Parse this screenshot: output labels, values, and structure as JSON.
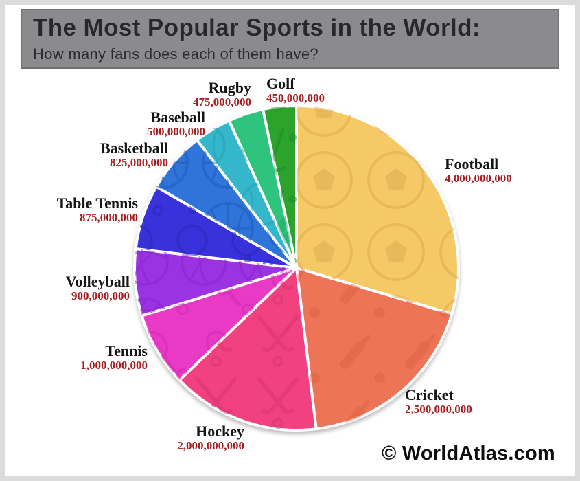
{
  "header": {
    "title": "The Most Popular Sports in the World:",
    "subtitle": "How many fans does each of them have?"
  },
  "watermark": "© WorldAtlas.com",
  "colors": {
    "header_background": "#8B8B8D",
    "header_text": "#28282A",
    "frame": "#DBDBDB",
    "slice_name_text": "#151515",
    "slice_value_text": "#A41E22",
    "slice_divider": "#FFFFFF"
  },
  "chart_data": {
    "type": "pie",
    "title": "The Most Popular Sports in the World:",
    "subtitle": "How many fans does each of them have?",
    "unit": "fans",
    "start_angle_deg": 0,
    "direction": "clockwise",
    "legend": "none",
    "slices": [
      {
        "name": "Football",
        "value": 4000000000,
        "value_label": "4,000,000,000",
        "color": "#F5C966",
        "pattern_color": "#DCA94F",
        "icon": "soccer-ball"
      },
      {
        "name": "Cricket",
        "value": 2500000000,
        "value_label": "2,500,000,000",
        "color": "#EE7457",
        "pattern_color": "#DE5F42",
        "icon": "cricket-bat"
      },
      {
        "name": "Hockey",
        "value": 2000000000,
        "value_label": "2,000,000,000",
        "color": "#F2417F",
        "pattern_color": "#D93570",
        "icon": "hockey-sticks"
      },
      {
        "name": "Tennis",
        "value": 1000000000,
        "value_label": "1,000,000,000",
        "color": "#E93AC6",
        "pattern_color": "#CF28AE",
        "icon": "tennis-racket"
      },
      {
        "name": "Volleyball",
        "value": 900000000,
        "value_label": "900,000,000",
        "color": "#9C33E2",
        "pattern_color": "#8523C9",
        "icon": "volleyball"
      },
      {
        "name": "Table Tennis",
        "value": 875000000,
        "value_label": "875,000,000",
        "color": "#3932DA",
        "pattern_color": "#2A24BC",
        "icon": "table-tennis-paddle"
      },
      {
        "name": "Basketball",
        "value": 825000000,
        "value_label": "825,000,000",
        "color": "#2E74D9",
        "pattern_color": "#2058BD",
        "icon": "basketball"
      },
      {
        "name": "Baseball",
        "value": 500000000,
        "value_label": "500,000,000",
        "color": "#35B7CB",
        "pattern_color": "#28A0B4",
        "icon": "baseball"
      },
      {
        "name": "Rugby",
        "value": 475000000,
        "value_label": "475,000,000",
        "color": "#2EC47D",
        "pattern_color": "#1FA867",
        "icon": "rugby-ball"
      },
      {
        "name": "Golf",
        "value": 450000000,
        "value_label": "450,000,000",
        "color": "#2CA42C",
        "pattern_color": "#1F8A26",
        "icon": "golf-club"
      }
    ]
  }
}
